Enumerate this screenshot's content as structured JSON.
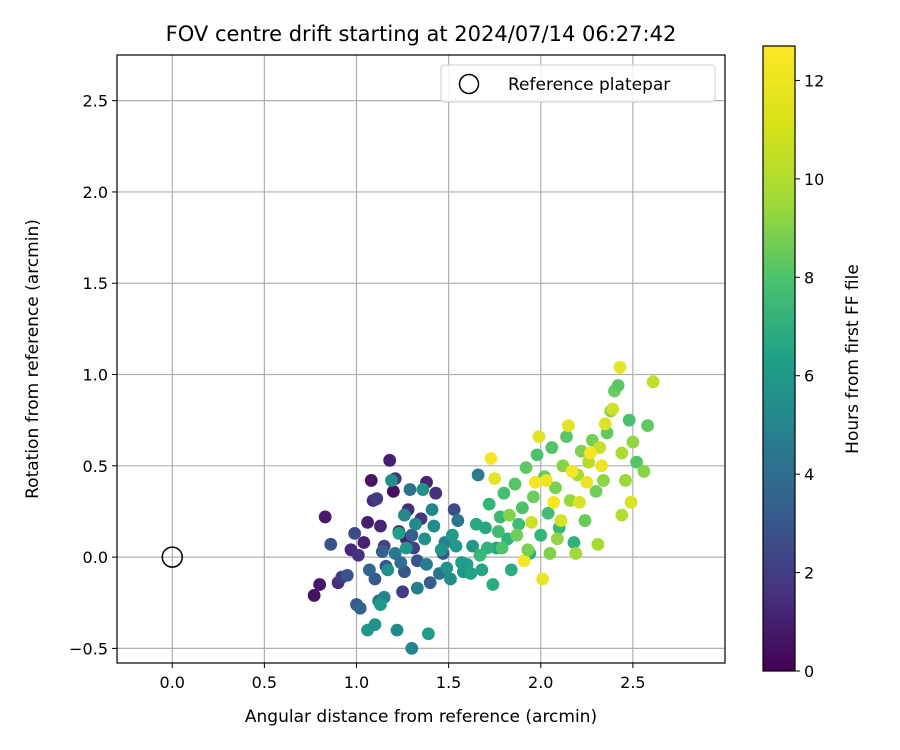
{
  "chart_data": {
    "type": "scatter",
    "title": "FOV centre drift starting at 2024/07/14 06:27:42",
    "xlabel": "Angular distance from reference (arcmin)",
    "ylabel": "Rotation from reference (arcmin)",
    "xlim": [
      -0.3,
      3.0
    ],
    "ylim": [
      -0.58,
      2.75
    ],
    "xticks": [
      "0.0",
      "0.5",
      "1.0",
      "1.5",
      "2.0",
      "2.5"
    ],
    "xtick_values": [
      0.0,
      0.5,
      1.0,
      1.5,
      2.0,
      2.5
    ],
    "yticks": [
      "−0.5",
      "0.0",
      "0.5",
      "1.0",
      "1.5",
      "2.0",
      "2.5"
    ],
    "ytick_values": [
      -0.5,
      0.0,
      0.5,
      1.0,
      1.5,
      2.0,
      2.5
    ],
    "grid": true,
    "legend": {
      "placement": "top-right",
      "entries": [
        "Reference platepar"
      ]
    },
    "reference_point": {
      "x": 0.0,
      "y": 0.0,
      "label": "Reference platepar"
    },
    "colorbar": {
      "label": "Hours from first FF file",
      "colormap": "viridis",
      "range": [
        0,
        12.7
      ],
      "ticks": [
        "0",
        "2",
        "4",
        "6",
        "8",
        "10",
        "12"
      ],
      "tick_values": [
        0,
        2,
        4,
        6,
        8,
        10,
        12
      ]
    },
    "points": [
      {
        "x": 0.77,
        "y": -0.21,
        "h": 0.6
      },
      {
        "x": 0.8,
        "y": -0.15,
        "h": 0.8
      },
      {
        "x": 0.83,
        "y": 0.22,
        "h": 0.9
      },
      {
        "x": 0.9,
        "y": -0.14,
        "h": 1.6
      },
      {
        "x": 0.92,
        "y": -0.11,
        "h": 2.2
      },
      {
        "x": 0.97,
        "y": 0.04,
        "h": 1.4
      },
      {
        "x": 0.99,
        "y": 0.13,
        "h": 2.9
      },
      {
        "x": 1.01,
        "y": 0.01,
        "h": 1.8
      },
      {
        "x": 1.04,
        "y": 0.08,
        "h": 1.2
      },
      {
        "x": 1.06,
        "y": 0.19,
        "h": 1.0
      },
      {
        "x": 1.08,
        "y": 0.42,
        "h": 0.7
      },
      {
        "x": 1.09,
        "y": 0.31,
        "h": 1.5
      },
      {
        "x": 1.11,
        "y": 0.32,
        "h": 2.1
      },
      {
        "x": 1.13,
        "y": 0.17,
        "h": 1.3
      },
      {
        "x": 1.15,
        "y": 0.06,
        "h": 2.6
      },
      {
        "x": 1.16,
        "y": -0.05,
        "h": 3.1
      },
      {
        "x": 1.18,
        "y": 0.53,
        "h": 1.1
      },
      {
        "x": 1.2,
        "y": 0.36,
        "h": 0.5
      },
      {
        "x": 1.21,
        "y": 0.43,
        "h": 1.9
      },
      {
        "x": 1.23,
        "y": 0.14,
        "h": 1.6
      },
      {
        "x": 1.25,
        "y": -0.19,
        "h": 2.3
      },
      {
        "x": 1.27,
        "y": 0.1,
        "h": 1.0
      },
      {
        "x": 1.28,
        "y": 0.26,
        "h": 1.7
      },
      {
        "x": 1.31,
        "y": 0.05,
        "h": 2.4
      },
      {
        "x": 1.33,
        "y": -0.02,
        "h": 3.3
      },
      {
        "x": 1.35,
        "y": 0.21,
        "h": 2.0
      },
      {
        "x": 1.38,
        "y": 0.41,
        "h": 1.3
      },
      {
        "x": 1.43,
        "y": 0.35,
        "h": 1.8
      },
      {
        "x": 1.47,
        "y": 0.02,
        "h": 3.5
      },
      {
        "x": 1.53,
        "y": 0.26,
        "h": 3.0
      },
      {
        "x": 1.1,
        "y": -0.12,
        "h": 3.6
      },
      {
        "x": 1.14,
        "y": 0.03,
        "h": 3.9
      },
      {
        "x": 1.26,
        "y": -0.08,
        "h": 3.4
      },
      {
        "x": 1.3,
        "y": 0.12,
        "h": 3.7
      },
      {
        "x": 1.4,
        "y": -0.14,
        "h": 3.8
      },
      {
        "x": 0.86,
        "y": 0.07,
        "h": 3.2
      },
      {
        "x": 0.95,
        "y": -0.1,
        "h": 3.3
      },
      {
        "x": 1.0,
        "y": -0.26,
        "h": 3.6
      },
      {
        "x": 1.02,
        "y": -0.28,
        "h": 4.0
      },
      {
        "x": 1.07,
        "y": -0.07,
        "h": 4.2
      },
      {
        "x": 1.12,
        "y": -0.24,
        "h": 5.2
      },
      {
        "x": 1.15,
        "y": -0.22,
        "h": 5.8
      },
      {
        "x": 1.19,
        "y": 0.42,
        "h": 6.3
      },
      {
        "x": 1.21,
        "y": 0.02,
        "h": 5.1
      },
      {
        "x": 1.24,
        "y": -0.03,
        "h": 4.6
      },
      {
        "x": 1.26,
        "y": 0.23,
        "h": 5.9
      },
      {
        "x": 1.29,
        "y": 0.37,
        "h": 4.9
      },
      {
        "x": 1.33,
        "y": -0.17,
        "h": 5.5
      },
      {
        "x": 1.36,
        "y": 0.37,
        "h": 6.5
      },
      {
        "x": 1.38,
        "y": -0.04,
        "h": 5.3
      },
      {
        "x": 1.42,
        "y": 0.17,
        "h": 6.1
      },
      {
        "x": 1.45,
        "y": -0.09,
        "h": 4.8
      },
      {
        "x": 1.48,
        "y": 0.08,
        "h": 5.6
      },
      {
        "x": 1.51,
        "y": -0.12,
        "h": 6.2
      },
      {
        "x": 1.55,
        "y": 0.2,
        "h": 5.0
      },
      {
        "x": 1.58,
        "y": -0.08,
        "h": 6.6
      },
      {
        "x": 1.06,
        "y": -0.4,
        "h": 6.8
      },
      {
        "x": 1.1,
        "y": -0.37,
        "h": 6.4
      },
      {
        "x": 1.22,
        "y": -0.4,
        "h": 6.0
      },
      {
        "x": 1.3,
        "y": -0.5,
        "h": 5.7
      },
      {
        "x": 1.39,
        "y": -0.42,
        "h": 7.0
      },
      {
        "x": 1.13,
        "y": -0.26,
        "h": 6.9
      },
      {
        "x": 1.17,
        "y": -0.07,
        "h": 6.3
      },
      {
        "x": 1.23,
        "y": 0.13,
        "h": 7.1
      },
      {
        "x": 1.27,
        "y": 0.05,
        "h": 6.7
      },
      {
        "x": 1.32,
        "y": 0.18,
        "h": 6.0
      },
      {
        "x": 1.37,
        "y": 0.1,
        "h": 6.4
      },
      {
        "x": 1.41,
        "y": 0.26,
        "h": 5.8
      },
      {
        "x": 1.46,
        "y": 0.04,
        "h": 6.6
      },
      {
        "x": 1.52,
        "y": 0.12,
        "h": 6.9
      },
      {
        "x": 1.6,
        "y": -0.04,
        "h": 7.2
      },
      {
        "x": 1.63,
        "y": 0.06,
        "h": 6.7
      },
      {
        "x": 1.66,
        "y": 0.45,
        "h": 5.4
      },
      {
        "x": 1.68,
        "y": -0.07,
        "h": 7.4
      },
      {
        "x": 1.7,
        "y": 0.16,
        "h": 7.6
      },
      {
        "x": 1.72,
        "y": 0.29,
        "h": 8.3
      },
      {
        "x": 1.74,
        "y": -0.15,
        "h": 7.8
      },
      {
        "x": 1.76,
        "y": 0.05,
        "h": 7.5
      },
      {
        "x": 1.78,
        "y": 0.22,
        "h": 8.6
      },
      {
        "x": 1.8,
        "y": 0.35,
        "h": 8.9
      },
      {
        "x": 1.82,
        "y": 0.1,
        "h": 8.2
      },
      {
        "x": 1.84,
        "y": -0.07,
        "h": 7.9
      },
      {
        "x": 1.86,
        "y": 0.4,
        "h": 9.3
      },
      {
        "x": 1.88,
        "y": 0.18,
        "h": 8.7
      },
      {
        "x": 1.9,
        "y": 0.27,
        "h": 9.1
      },
      {
        "x": 1.92,
        "y": 0.49,
        "h": 9.5
      },
      {
        "x": 1.94,
        "y": 0.02,
        "h": 8.0
      },
      {
        "x": 1.96,
        "y": 0.33,
        "h": 9.8
      },
      {
        "x": 1.98,
        "y": 0.56,
        "h": 9.0
      },
      {
        "x": 2.0,
        "y": 0.12,
        "h": 8.4
      },
      {
        "x": 2.02,
        "y": 0.44,
        "h": 9.6
      },
      {
        "x": 2.04,
        "y": 0.24,
        "h": 8.8
      },
      {
        "x": 2.06,
        "y": 0.6,
        "h": 9.2
      },
      {
        "x": 2.08,
        "y": 0.38,
        "h": 10.1
      },
      {
        "x": 2.1,
        "y": 0.16,
        "h": 8.5
      },
      {
        "x": 2.12,
        "y": 0.5,
        "h": 10.4
      },
      {
        "x": 2.14,
        "y": 0.66,
        "h": 9.4
      },
      {
        "x": 2.16,
        "y": 0.31,
        "h": 10.7
      },
      {
        "x": 2.18,
        "y": 0.08,
        "h": 8.1
      },
      {
        "x": 2.2,
        "y": 0.45,
        "h": 11.0
      },
      {
        "x": 2.22,
        "y": 0.58,
        "h": 10.2
      },
      {
        "x": 2.24,
        "y": 0.2,
        "h": 9.7
      },
      {
        "x": 2.26,
        "y": 0.52,
        "h": 11.3
      },
      {
        "x": 2.28,
        "y": 0.64,
        "h": 10.0
      },
      {
        "x": 2.3,
        "y": 0.36,
        "h": 9.9
      },
      {
        "x": 2.32,
        "y": 0.6,
        "h": 11.6
      },
      {
        "x": 2.34,
        "y": 0.42,
        "h": 10.5
      },
      {
        "x": 2.36,
        "y": 0.68,
        "h": 9.6
      },
      {
        "x": 2.38,
        "y": 0.8,
        "h": 10.3
      },
      {
        "x": 2.4,
        "y": 0.91,
        "h": 9.8
      },
      {
        "x": 2.42,
        "y": 0.94,
        "h": 9.4
      },
      {
        "x": 2.44,
        "y": 0.57,
        "h": 11.1
      },
      {
        "x": 2.46,
        "y": 0.42,
        "h": 10.8
      },
      {
        "x": 2.48,
        "y": 0.75,
        "h": 9.0
      },
      {
        "x": 2.5,
        "y": 0.63,
        "h": 10.6
      },
      {
        "x": 2.52,
        "y": 0.52,
        "h": 9.2
      },
      {
        "x": 2.56,
        "y": 0.47,
        "h": 10.4
      },
      {
        "x": 2.58,
        "y": 0.72,
        "h": 9.5
      },
      {
        "x": 2.61,
        "y": 0.96,
        "h": 11.5
      },
      {
        "x": 2.43,
        "y": 1.04,
        "h": 12.2
      },
      {
        "x": 2.39,
        "y": 0.81,
        "h": 11.8
      },
      {
        "x": 2.35,
        "y": 0.73,
        "h": 12.1
      },
      {
        "x": 2.33,
        "y": 0.5,
        "h": 12.4
      },
      {
        "x": 2.27,
        "y": 0.57,
        "h": 12.6
      },
      {
        "x": 2.25,
        "y": 0.41,
        "h": 12.3
      },
      {
        "x": 2.21,
        "y": 0.3,
        "h": 12.0
      },
      {
        "x": 2.17,
        "y": 0.47,
        "h": 12.5
      },
      {
        "x": 2.15,
        "y": 0.72,
        "h": 12.2
      },
      {
        "x": 2.11,
        "y": 0.2,
        "h": 11.9
      },
      {
        "x": 2.07,
        "y": 0.3,
        "h": 12.6
      },
      {
        "x": 2.03,
        "y": 0.42,
        "h": 12.4
      },
      {
        "x": 1.99,
        "y": 0.66,
        "h": 12.1
      },
      {
        "x": 1.95,
        "y": 0.19,
        "h": 11.7
      },
      {
        "x": 2.01,
        "y": -0.12,
        "h": 12.3
      },
      {
        "x": 1.91,
        "y": -0.02,
        "h": 12.5
      },
      {
        "x": 1.97,
        "y": 0.41,
        "h": 12.6
      },
      {
        "x": 1.75,
        "y": 0.43,
        "h": 12.2
      },
      {
        "x": 1.73,
        "y": 0.54,
        "h": 12.6
      },
      {
        "x": 2.49,
        "y": 0.3,
        "h": 12.0
      },
      {
        "x": 2.44,
        "y": 0.23,
        "h": 11.2
      },
      {
        "x": 2.31,
        "y": 0.07,
        "h": 11.0
      },
      {
        "x": 2.19,
        "y": 0.02,
        "h": 10.9
      },
      {
        "x": 2.09,
        "y": 0.1,
        "h": 10.6
      },
      {
        "x": 2.05,
        "y": 0.02,
        "h": 10.2
      },
      {
        "x": 1.93,
        "y": 0.04,
        "h": 10.1
      },
      {
        "x": 1.87,
        "y": 0.12,
        "h": 9.9
      },
      {
        "x": 1.83,
        "y": 0.23,
        "h": 10.3
      },
      {
        "x": 1.79,
        "y": 0.05,
        "h": 9.1
      },
      {
        "x": 1.77,
        "y": 0.14,
        "h": 8.8
      },
      {
        "x": 1.71,
        "y": 0.05,
        "h": 8.2
      },
      {
        "x": 1.67,
        "y": 0.01,
        "h": 8.5
      },
      {
        "x": 1.65,
        "y": 0.18,
        "h": 7.7
      },
      {
        "x": 1.62,
        "y": -0.09,
        "h": 7.3
      },
      {
        "x": 1.57,
        "y": -0.03,
        "h": 7.0
      },
      {
        "x": 1.54,
        "y": 0.06,
        "h": 6.8
      },
      {
        "x": 1.49,
        "y": -0.06,
        "h": 6.5
      }
    ]
  }
}
